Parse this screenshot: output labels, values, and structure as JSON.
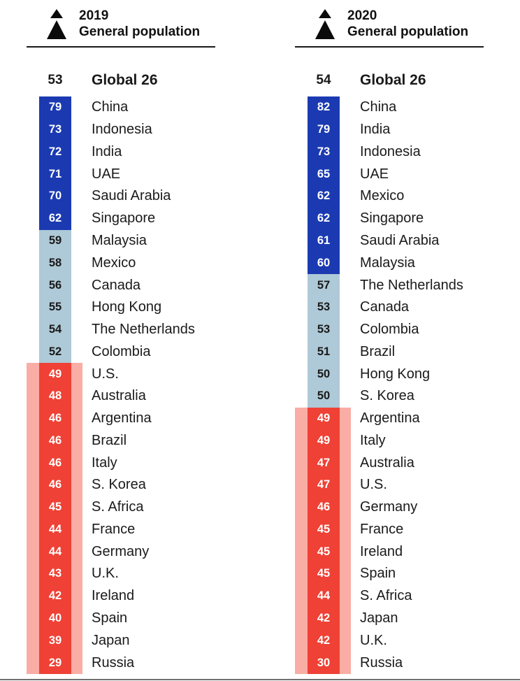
{
  "colors": {
    "trust": "#1b3ab2",
    "neutral": "#aec9d7",
    "distrust": "#ef4135",
    "band": "#f9ada5",
    "ink": "#1a1a1a"
  },
  "header_icon": "mountain-triangles-icon",
  "chart_data": {
    "type": "ranked-bar-table",
    "legend_position": "top",
    "tier_legend": {
      "trust": "score 60 and above (dark blue cell)",
      "neutral": "score 50-59 (light blue-gray cell)",
      "distrust": "score below 50 (red cell with salmon highlight band)"
    },
    "series": [
      {
        "year": "2019",
        "group": "General population",
        "global_label": "Global 26",
        "global_value": "53",
        "rows": [
          {
            "country": "China",
            "value": "79",
            "tier": "trust"
          },
          {
            "country": "Indonesia",
            "value": "73",
            "tier": "trust"
          },
          {
            "country": "India",
            "value": "72",
            "tier": "trust"
          },
          {
            "country": "UAE",
            "value": "71",
            "tier": "trust"
          },
          {
            "country": "Saudi Arabia",
            "value": "70",
            "tier": "trust"
          },
          {
            "country": "Singapore",
            "value": "62",
            "tier": "trust"
          },
          {
            "country": "Malaysia",
            "value": "59",
            "tier": "neutral"
          },
          {
            "country": "Mexico",
            "value": "58",
            "tier": "neutral"
          },
          {
            "country": "Canada",
            "value": "56",
            "tier": "neutral"
          },
          {
            "country": "Hong Kong",
            "value": "55",
            "tier": "neutral"
          },
          {
            "country": "The Netherlands",
            "value": "54",
            "tier": "neutral"
          },
          {
            "country": "Colombia",
            "value": "52",
            "tier": "neutral"
          },
          {
            "country": "U.S.",
            "value": "49",
            "tier": "distrust"
          },
          {
            "country": "Australia",
            "value": "48",
            "tier": "distrust"
          },
          {
            "country": "Argentina",
            "value": "46",
            "tier": "distrust"
          },
          {
            "country": "Brazil",
            "value": "46",
            "tier": "distrust"
          },
          {
            "country": "Italy",
            "value": "46",
            "tier": "distrust"
          },
          {
            "country": "S. Korea",
            "value": "46",
            "tier": "distrust"
          },
          {
            "country": "S. Africa",
            "value": "45",
            "tier": "distrust"
          },
          {
            "country": "France",
            "value": "44",
            "tier": "distrust"
          },
          {
            "country": "Germany",
            "value": "44",
            "tier": "distrust"
          },
          {
            "country": "U.K.",
            "value": "43",
            "tier": "distrust"
          },
          {
            "country": "Ireland",
            "value": "42",
            "tier": "distrust"
          },
          {
            "country": "Spain",
            "value": "40",
            "tier": "distrust"
          },
          {
            "country": "Japan",
            "value": "39",
            "tier": "distrust"
          },
          {
            "country": "Russia",
            "value": "29",
            "tier": "distrust"
          }
        ]
      },
      {
        "year": "2020",
        "group": "General population",
        "global_label": "Global 26",
        "global_value": "54",
        "rows": [
          {
            "country": "China",
            "value": "82",
            "tier": "trust"
          },
          {
            "country": "India",
            "value": "79",
            "tier": "trust"
          },
          {
            "country": "Indonesia",
            "value": "73",
            "tier": "trust"
          },
          {
            "country": "UAE",
            "value": "65",
            "tier": "trust"
          },
          {
            "country": "Mexico",
            "value": "62",
            "tier": "trust"
          },
          {
            "country": "Singapore",
            "value": "62",
            "tier": "trust"
          },
          {
            "country": "Saudi Arabia",
            "value": "61",
            "tier": "trust"
          },
          {
            "country": "Malaysia",
            "value": "60",
            "tier": "trust"
          },
          {
            "country": "The Netherlands",
            "value": "57",
            "tier": "neutral"
          },
          {
            "country": "Canada",
            "value": "53",
            "tier": "neutral"
          },
          {
            "country": "Colombia",
            "value": "53",
            "tier": "neutral"
          },
          {
            "country": "Brazil",
            "value": "51",
            "tier": "neutral"
          },
          {
            "country": "Hong Kong",
            "value": "50",
            "tier": "neutral"
          },
          {
            "country": "S. Korea",
            "value": "50",
            "tier": "neutral"
          },
          {
            "country": "Argentina",
            "value": "49",
            "tier": "distrust"
          },
          {
            "country": "Italy",
            "value": "49",
            "tier": "distrust"
          },
          {
            "country": "Australia",
            "value": "47",
            "tier": "distrust"
          },
          {
            "country": "U.S.",
            "value": "47",
            "tier": "distrust"
          },
          {
            "country": "Germany",
            "value": "46",
            "tier": "distrust"
          },
          {
            "country": "France",
            "value": "45",
            "tier": "distrust"
          },
          {
            "country": "Ireland",
            "value": "45",
            "tier": "distrust"
          },
          {
            "country": "Spain",
            "value": "45",
            "tier": "distrust"
          },
          {
            "country": "S. Africa",
            "value": "44",
            "tier": "distrust"
          },
          {
            "country": "Japan",
            "value": "42",
            "tier": "distrust"
          },
          {
            "country": "U.K.",
            "value": "42",
            "tier": "distrust"
          },
          {
            "country": "Russia",
            "value": "30",
            "tier": "distrust"
          }
        ]
      }
    ]
  }
}
